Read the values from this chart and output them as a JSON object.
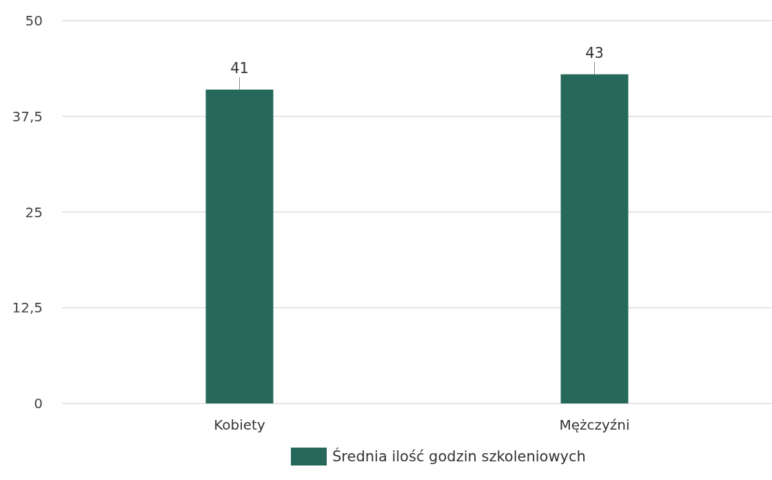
{
  "chart_data": {
    "type": "bar",
    "categories": [
      "Kobiety",
      "Mężczyźni"
    ],
    "series": [
      {
        "name": "Średnia ilość godzin szkoleniowych",
        "color": "#26695a",
        "values": [
          41,
          43
        ]
      }
    ],
    "ylim": [
      0,
      50
    ],
    "yticks": [
      0,
      {
        "value": 12.5,
        "label": "12,5"
      },
      25,
      {
        "value": 37.5,
        "label": "37,5"
      },
      50
    ],
    "grid": "y",
    "legend": "bottom",
    "data_labels": true
  }
}
